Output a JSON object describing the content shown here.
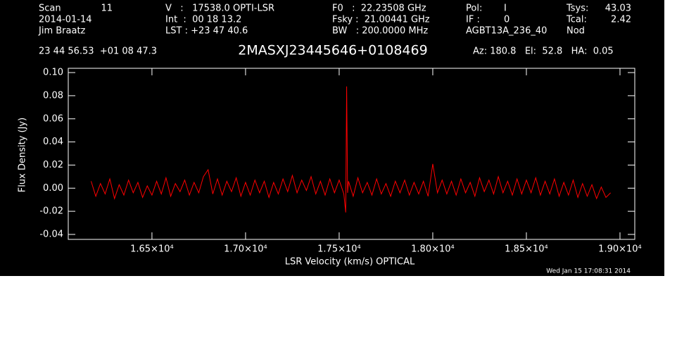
{
  "header": {
    "scan_label": "Scan",
    "scan": "11",
    "date": "2014-01-14",
    "observer": "Jim Braatz",
    "coords": "23 44 56.53  +01 08 47.3",
    "velocity": "V   :   17538.0 OPTI-LSR",
    "int": "Int  :  00 18 13.2",
    "lst": "LST : +23 47 40.6",
    "f0": "F0   :  22.23508 GHz",
    "fsky": "Fsky :  21.00441 GHz",
    "bw": "BW   : 200.0000 MHz",
    "pol_label": "Pol:",
    "pol": "I",
    "if_label": "IF :",
    "if": "0",
    "project": "AGBT13A_236_40",
    "tsys_label": "Tsys:",
    "tsys": "43.03",
    "tcal_label": "Tcal:",
    "tcal": "2.42",
    "proc": "Nod",
    "azelha": "Az: 180.8   El:  52.8   HA:  0.05",
    "timestamp": "Wed Jan 15 17:08:31 2014"
  },
  "chart_data": {
    "type": "line",
    "title": "2MASXJ23445646+0108469",
    "x_label": "LSR Velocity (km/s) OPTICAL",
    "y_label": "Flux Density (Jy)",
    "xlim": [
      16053,
      19079
    ],
    "ylim": [
      -0.0443,
      0.1037
    ],
    "xticks": [
      {
        "value": 16500,
        "label": "1.65×10⁴"
      },
      {
        "value": 17000,
        "label": "1.70×10⁴"
      },
      {
        "value": 17500,
        "label": "1.75×10⁴"
      },
      {
        "value": 18000,
        "label": "1.80×10⁴"
      },
      {
        "value": 18500,
        "label": "1.85×10⁴"
      },
      {
        "value": 19000,
        "label": "1.90×10⁴"
      }
    ],
    "yticks": [
      {
        "value": -0.04,
        "label": "-0.04"
      },
      {
        "value": -0.02,
        "label": "-0.02"
      },
      {
        "value": 0,
        "label": "0.00"
      },
      {
        "value": 0.02,
        "label": "0.02"
      },
      {
        "value": 0.04,
        "label": "0.04"
      },
      {
        "value": 0.06,
        "label": "0.06"
      },
      {
        "value": 0.08,
        "label": "0.08"
      },
      {
        "value": 0.1,
        "label": "0.10"
      }
    ],
    "x": [
      16175,
      16200,
      16225,
      16250,
      16275,
      16300,
      16325,
      16350,
      16375,
      16400,
      16425,
      16450,
      16475,
      16500,
      16525,
      16550,
      16575,
      16600,
      16625,
      16650,
      16675,
      16700,
      16725,
      16750,
      16775,
      16800,
      16825,
      16850,
      16875,
      16900,
      16925,
      16950,
      16975,
      17000,
      17025,
      17050,
      17075,
      17100,
      17125,
      17150,
      17175,
      17200,
      17225,
      17250,
      17275,
      17300,
      17325,
      17350,
      17375,
      17400,
      17425,
      17450,
      17475,
      17500,
      17525,
      17535,
      17540,
      17545,
      17550,
      17575,
      17600,
      17625,
      17650,
      17675,
      17700,
      17725,
      17750,
      17775,
      17800,
      17825,
      17850,
      17875,
      17900,
      17925,
      17950,
      17975,
      18000,
      18025,
      18050,
      18075,
      18100,
      18125,
      18150,
      18175,
      18200,
      18225,
      18250,
      18275,
      18300,
      18325,
      18350,
      18375,
      18400,
      18425,
      18450,
      18475,
      18500,
      18525,
      18550,
      18575,
      18600,
      18625,
      18650,
      18675,
      18700,
      18725,
      18750,
      18775,
      18800,
      18825,
      18850,
      18875,
      18900,
      18925,
      18950
    ],
    "series": [
      {
        "color": "#ff0000",
        "values": [
          0.006,
          -0.007,
          0.004,
          -0.005,
          0.008,
          -0.009,
          0.003,
          -0.006,
          0.007,
          -0.004,
          0.005,
          -0.008,
          0.002,
          -0.006,
          0.006,
          -0.005,
          0.009,
          -0.007,
          0.004,
          -0.003,
          0.007,
          -0.006,
          0.005,
          -0.004,
          0.01,
          0.016,
          -0.005,
          0.008,
          -0.006,
          0.006,
          -0.003,
          0.009,
          -0.007,
          0.005,
          -0.006,
          0.007,
          -0.004,
          0.006,
          -0.008,
          0.005,
          -0.005,
          0.008,
          -0.003,
          0.011,
          -0.004,
          0.007,
          -0.002,
          0.01,
          -0.005,
          0.006,
          -0.006,
          0.008,
          -0.004,
          0.007,
          -0.005,
          -0.021,
          0.088,
          -0.004,
          0.006,
          -0.007,
          0.009,
          -0.004,
          0.005,
          -0.006,
          0.008,
          -0.005,
          0.004,
          -0.007,
          0.006,
          -0.004,
          0.007,
          -0.006,
          0.005,
          -0.005,
          0.006,
          -0.007,
          0.021,
          -0.004,
          0.007,
          -0.005,
          0.006,
          -0.006,
          0.008,
          -0.004,
          0.005,
          -0.007,
          0.009,
          -0.003,
          0.007,
          -0.005,
          0.01,
          -0.004,
          0.006,
          -0.006,
          0.008,
          -0.005,
          0.007,
          -0.004,
          0.009,
          -0.006,
          0.006,
          -0.005,
          0.008,
          -0.007,
          0.005,
          -0.006,
          0.007,
          -0.008,
          0.004,
          -0.007,
          0.003,
          -0.009,
          0.001,
          -0.008,
          -0.004
        ]
      }
    ]
  }
}
